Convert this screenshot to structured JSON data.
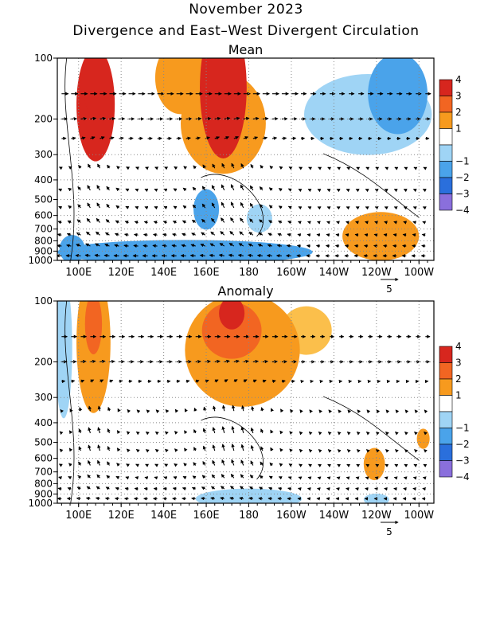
{
  "figure": {
    "title": "November 2023",
    "subtitle": "Divergence and East–West Divergent Circulation"
  },
  "colors": {
    "div_4": "#d7261e",
    "div_3": "#f26522",
    "div_2": "#f79a1e",
    "div_1": "#fbbf4b",
    "div_m1": "#9fd4f5",
    "div_m2": "#4aa3ea",
    "div_m3": "#2a6fdc",
    "div_m4": "#8a6fdc"
  },
  "chart_data": [
    {
      "type": "heatmap",
      "panel_title": "Mean",
      "x_ticklabels": [
        "100E",
        "120E",
        "140E",
        "160E",
        "180",
        "160W",
        "140W",
        "120W",
        "100W"
      ],
      "x_tick_lon": [
        100,
        120,
        140,
        160,
        180,
        200,
        220,
        240,
        260
      ],
      "xlim": [
        90,
        267
      ],
      "y_ticklabels": [
        "100",
        "200",
        "300",
        "400",
        "500",
        "600",
        "700",
        "800",
        "900",
        "1000"
      ],
      "y_ticks_hpa": [
        100,
        200,
        300,
        400,
        500,
        600,
        700,
        800,
        900,
        1000
      ],
      "ylim": [
        1000,
        100
      ],
      "y_scale": "log",
      "legend_labels": [
        "4",
        "3",
        "2",
        "1",
        "−1",
        "−2",
        "−3",
        "−4"
      ],
      "vector_scale_label": "5",
      "blobs": [
        {
          "lon": 108,
          "p": 170,
          "rx": 9,
          "ry": 0.28,
          "level": 4
        },
        {
          "lon": 108,
          "p": 130,
          "rx": 6,
          "ry": 0.18,
          "level": 4
        },
        {
          "lon": 148,
          "p": 125,
          "rx": 12,
          "ry": 0.18,
          "level": 2
        },
        {
          "lon": 168,
          "p": 140,
          "rx": 11,
          "ry": 0.35,
          "level": 4
        },
        {
          "lon": 168,
          "p": 210,
          "rx": 20,
          "ry": 0.25,
          "level": 2
        },
        {
          "lon": 236,
          "p": 190,
          "rx": 30,
          "ry": 0.2,
          "level": -1
        },
        {
          "lon": 250,
          "p": 150,
          "rx": 14,
          "ry": 0.2,
          "level": -2
        },
        {
          "lon": 160,
          "p": 560,
          "rx": 6,
          "ry": 0.1,
          "level": -2
        },
        {
          "lon": 185,
          "p": 620,
          "rx": 6,
          "ry": 0.07,
          "level": -1
        },
        {
          "lon": 242,
          "p": 760,
          "rx": 18,
          "ry": 0.12,
          "level": 2
        },
        {
          "lon": 150,
          "p": 910,
          "rx": 60,
          "ry": 0.06,
          "level": -2
        },
        {
          "lon": 97,
          "p": 880,
          "rx": 6,
          "ry": 0.07,
          "level": -2
        }
      ],
      "vectors": [
        {
          "p": 150,
          "u": 1.2,
          "w": 0
        },
        {
          "p": 200,
          "u": 1.0,
          "w": 0.1
        },
        {
          "p": 250,
          "u": 0.8,
          "w": 0.2
        },
        {
          "p": 350,
          "u": -0.4,
          "w": 0.5
        },
        {
          "p": 450,
          "u": -0.5,
          "w": 0.6
        },
        {
          "p": 550,
          "u": -0.5,
          "w": 0.6
        },
        {
          "p": 650,
          "u": -0.6,
          "w": 0.5
        },
        {
          "p": 750,
          "u": -0.7,
          "w": 0.4
        },
        {
          "p": 850,
          "u": -0.8,
          "w": 0.3
        },
        {
          "p": 950,
          "u": -0.9,
          "w": 0.1
        }
      ]
    },
    {
      "type": "heatmap",
      "panel_title": "Anomaly",
      "x_ticklabels": [
        "100E",
        "120E",
        "140E",
        "160E",
        "180",
        "160W",
        "140W",
        "120W",
        "100W"
      ],
      "x_tick_lon": [
        100,
        120,
        140,
        160,
        180,
        200,
        220,
        240,
        260
      ],
      "xlim": [
        90,
        267
      ],
      "y_ticklabels": [
        "100",
        "200",
        "300",
        "400",
        "500",
        "600",
        "700",
        "800",
        "900",
        "1000"
      ],
      "y_ticks_hpa": [
        100,
        200,
        300,
        400,
        500,
        600,
        700,
        800,
        900,
        1000
      ],
      "ylim": [
        1000,
        100
      ],
      "y_scale": "log",
      "legend_labels": [
        "4",
        "3",
        "2",
        "1",
        "−1",
        "−2",
        "−3",
        "−4"
      ],
      "vector_scale_label": "5",
      "blobs": [
        {
          "lon": 93,
          "p": 170,
          "rx": 4,
          "ry": 0.35,
          "level": -1
        },
        {
          "lon": 107,
          "p": 160,
          "rx": 8,
          "ry": 0.35,
          "level": 2
        },
        {
          "lon": 107,
          "p": 130,
          "rx": 4,
          "ry": 0.15,
          "level": 3
        },
        {
          "lon": 177,
          "p": 175,
          "rx": 27,
          "ry": 0.28,
          "level": 2
        },
        {
          "lon": 172,
          "p": 140,
          "rx": 14,
          "ry": 0.14,
          "level": 3
        },
        {
          "lon": 172,
          "p": 115,
          "rx": 6,
          "ry": 0.08,
          "level": 4
        },
        {
          "lon": 207,
          "p": 140,
          "rx": 12,
          "ry": 0.12,
          "level": 1
        },
        {
          "lon": 262,
          "p": 480,
          "rx": 3,
          "ry": 0.05,
          "level": 2
        },
        {
          "lon": 239,
          "p": 640,
          "rx": 5,
          "ry": 0.08,
          "level": 2
        },
        {
          "lon": 180,
          "p": 950,
          "rx": 25,
          "ry": 0.05,
          "level": -1
        },
        {
          "lon": 240,
          "p": 960,
          "rx": 6,
          "ry": 0.03,
          "level": -1
        }
      ],
      "vectors": [
        {
          "p": 150,
          "u": 1.0,
          "w": 0
        },
        {
          "p": 200,
          "u": 0.9,
          "w": 0.1
        },
        {
          "p": 250,
          "u": 0.6,
          "w": 0.2
        },
        {
          "p": 350,
          "u": -0.2,
          "w": 0.6
        },
        {
          "p": 450,
          "u": -0.3,
          "w": 0.7
        },
        {
          "p": 550,
          "u": -0.3,
          "w": 0.7
        },
        {
          "p": 650,
          "u": -0.4,
          "w": 0.6
        },
        {
          "p": 750,
          "u": -0.5,
          "w": 0.4
        },
        {
          "p": 850,
          "u": -0.6,
          "w": 0.3
        },
        {
          "p": 950,
          "u": -0.7,
          "w": 0.1
        }
      ]
    }
  ]
}
